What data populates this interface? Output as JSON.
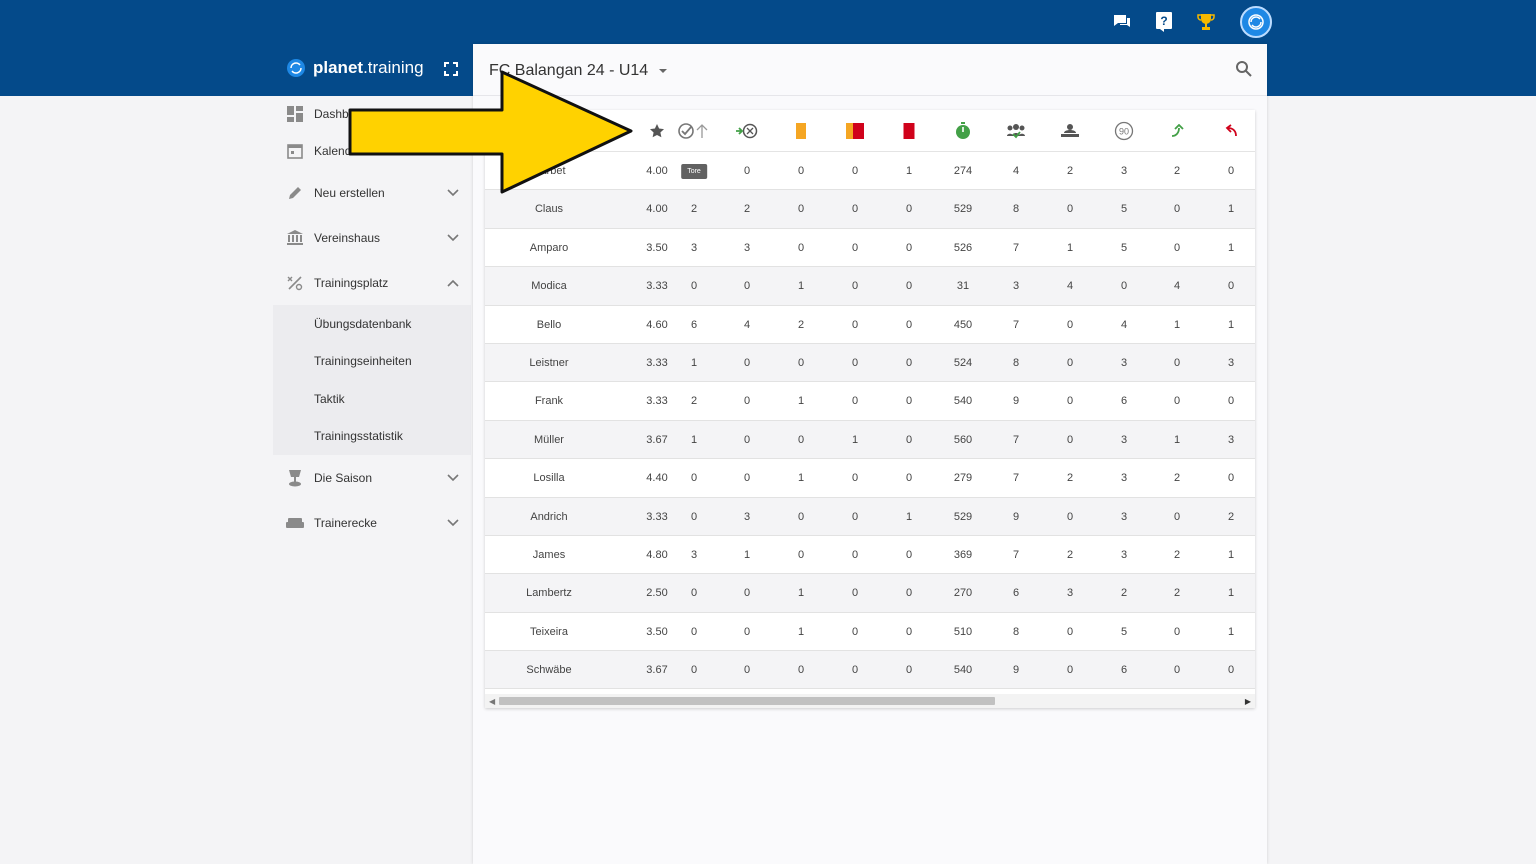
{
  "header": {
    "brand": {
      "name_bold": "planet",
      "name_rest": ".training"
    },
    "icons": [
      "chat-icon",
      "help-icon",
      "trophy-icon",
      "avatar"
    ]
  },
  "sidebar": {
    "items": [
      {
        "label": "Dashboard",
        "icon": "dashboard-icon",
        "chevron": null
      },
      {
        "label": "Kalender",
        "icon": "calendar-icon",
        "chevron": null
      },
      {
        "label": "Neu erstellen",
        "icon": "pencil-icon",
        "chevron": "down"
      },
      {
        "label": "Vereinshaus",
        "icon": "bank-icon",
        "chevron": "down"
      },
      {
        "label": "Trainingsplatz",
        "icon": "percent-icon",
        "chevron": "up"
      }
    ],
    "subitems": [
      "Übungsdatenbank",
      "Trainingseinheiten",
      "Taktik",
      "Trainingsstatistik"
    ],
    "items_after": [
      {
        "label": "Die Saison",
        "icon": "cup-icon",
        "chevron": "down"
      },
      {
        "label": "Trainerecke",
        "icon": "sofa-icon",
        "chevron": "down"
      }
    ]
  },
  "panel": {
    "team": "FC Balangan 24 - U14"
  },
  "table": {
    "columns": [
      "rating-icon",
      "goals-icon",
      "assists-icon",
      "yellow-card-icon",
      "yellow-red-card-icon",
      "red-card-icon",
      "minutes-icon",
      "games-icon",
      "bench-icon",
      "full-game-icon",
      "sub-in-icon",
      "sub-out-icon"
    ],
    "tooltip": "Tore",
    "rows": [
      {
        "name": "Darbet",
        "values": [
          "4.00",
          "",
          "0",
          "0",
          "0",
          "1",
          "274",
          "4",
          "2",
          "3",
          "2",
          "0"
        ]
      },
      {
        "name": "Claus",
        "values": [
          "4.00",
          "2",
          "2",
          "0",
          "0",
          "0",
          "529",
          "8",
          "0",
          "5",
          "0",
          "1"
        ]
      },
      {
        "name": "Amparo",
        "values": [
          "3.50",
          "3",
          "3",
          "0",
          "0",
          "0",
          "526",
          "7",
          "1",
          "5",
          "0",
          "1"
        ]
      },
      {
        "name": "Modica",
        "values": [
          "3.33",
          "0",
          "0",
          "1",
          "0",
          "0",
          "31",
          "3",
          "4",
          "0",
          "4",
          "0"
        ]
      },
      {
        "name": "Bello",
        "values": [
          "4.60",
          "6",
          "4",
          "2",
          "0",
          "0",
          "450",
          "7",
          "0",
          "4",
          "1",
          "1"
        ]
      },
      {
        "name": "Leistner",
        "values": [
          "3.33",
          "1",
          "0",
          "0",
          "0",
          "0",
          "524",
          "8",
          "0",
          "3",
          "0",
          "3"
        ]
      },
      {
        "name": "Frank",
        "values": [
          "3.33",
          "2",
          "0",
          "1",
          "0",
          "0",
          "540",
          "9",
          "0",
          "6",
          "0",
          "0"
        ]
      },
      {
        "name": "Müller",
        "values": [
          "3.67",
          "1",
          "0",
          "0",
          "1",
          "0",
          "560",
          "7",
          "0",
          "3",
          "1",
          "3"
        ]
      },
      {
        "name": "Losilla",
        "values": [
          "4.40",
          "0",
          "0",
          "1",
          "0",
          "0",
          "279",
          "7",
          "2",
          "3",
          "2",
          "0"
        ]
      },
      {
        "name": "Andrich",
        "values": [
          "3.33",
          "0",
          "3",
          "0",
          "0",
          "1",
          "529",
          "9",
          "0",
          "3",
          "0",
          "2"
        ]
      },
      {
        "name": "James",
        "values": [
          "4.80",
          "3",
          "1",
          "0",
          "0",
          "0",
          "369",
          "7",
          "2",
          "3",
          "2",
          "1"
        ]
      },
      {
        "name": "Lambertz",
        "values": [
          "2.50",
          "0",
          "0",
          "1",
          "0",
          "0",
          "270",
          "6",
          "3",
          "2",
          "2",
          "1"
        ]
      },
      {
        "name": "Teixeira",
        "values": [
          "3.50",
          "0",
          "0",
          "1",
          "0",
          "0",
          "510",
          "8",
          "0",
          "5",
          "0",
          "1"
        ]
      },
      {
        "name": "Schwäbe",
        "values": [
          "3.67",
          "0",
          "0",
          "0",
          "0",
          "0",
          "540",
          "9",
          "0",
          "6",
          "0",
          "0"
        ]
      }
    ]
  },
  "colors": {
    "header_bg": "#044a8a",
    "arrow": "#ffd200",
    "yellow_card": "#f5a623",
    "red_card": "#d0021b",
    "green": "#43a047"
  }
}
